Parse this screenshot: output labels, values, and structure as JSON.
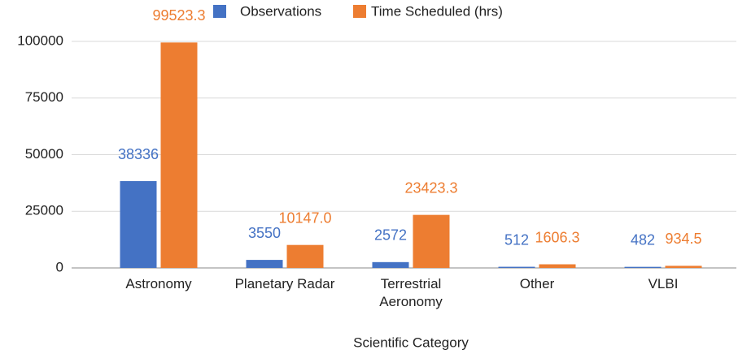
{
  "chart_data": {
    "type": "bar",
    "x_label": "Scientific Category",
    "categories": [
      "Astronomy",
      "Planetary Radar",
      "Terrestrial Aeronomy",
      "Other",
      "VLBI"
    ],
    "series": [
      {
        "name": "Observations",
        "color": "#4472c4",
        "values": [
          38336,
          3550,
          2572,
          512,
          482
        ]
      },
      {
        "name": "Time Scheduled (hrs)",
        "color": "#ed7d31",
        "values": [
          99523.3,
          10147.0,
          23423.3,
          1606.3,
          934.5
        ],
        "value_labels": [
          "99523.3",
          "10147.0",
          "23423.3",
          "1606.3",
          "934.5"
        ]
      }
    ],
    "ylim": [
      0,
      100000
    ],
    "yticks": [
      0,
      25000,
      50000,
      75000,
      100000
    ],
    "grid": true,
    "legend": "top"
  }
}
